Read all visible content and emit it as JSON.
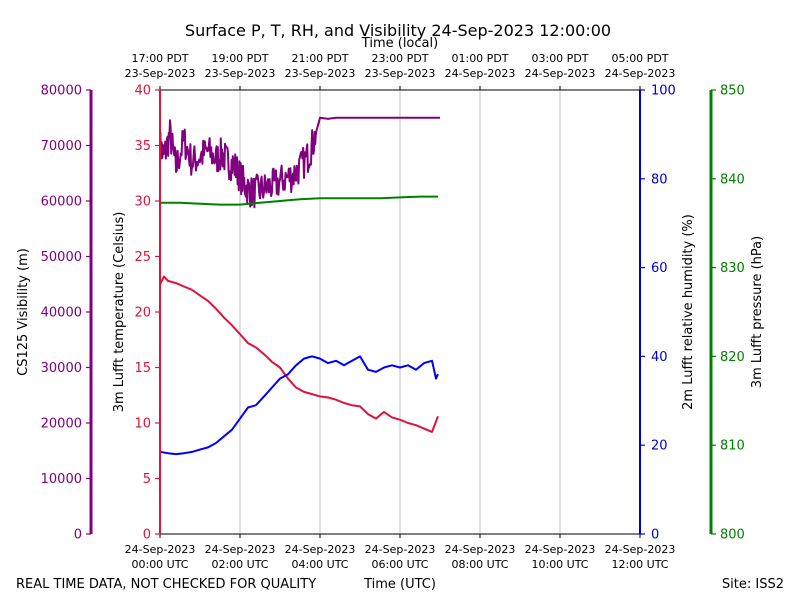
{
  "chart_data": {
    "type": "line",
    "title": "Surface P, T, RH, and Visibility 24-Sep-2023 12:00:00",
    "top_xlabel": "Time (local)",
    "xlabel": "Time (UTC)",
    "footer_left": "REAL TIME DATA, NOT CHECKED FOR QUALITY",
    "footer_right": "Site: ISS2",
    "x_range_hours": [
      0,
      12
    ],
    "x_ticks_utc": [
      {
        "h": 0,
        "line1": "24-Sep-2023",
        "line2": "00:00 UTC"
      },
      {
        "h": 2,
        "line1": "24-Sep-2023",
        "line2": "02:00 UTC"
      },
      {
        "h": 4,
        "line1": "24-Sep-2023",
        "line2": "04:00 UTC"
      },
      {
        "h": 6,
        "line1": "24-Sep-2023",
        "line2": "06:00 UTC"
      },
      {
        "h": 8,
        "line1": "24-Sep-2023",
        "line2": "08:00 UTC"
      },
      {
        "h": 10,
        "line1": "24-Sep-2023",
        "line2": "10:00 UTC"
      },
      {
        "h": 12,
        "line1": "24-Sep-2023",
        "line2": "12:00 UTC"
      }
    ],
    "x_ticks_local": [
      {
        "h": 0,
        "line1": "17:00 PDT",
        "line2": "23-Sep-2023"
      },
      {
        "h": 2,
        "line1": "19:00 PDT",
        "line2": "23-Sep-2023"
      },
      {
        "h": 4,
        "line1": "21:00 PDT",
        "line2": "23-Sep-2023"
      },
      {
        "h": 6,
        "line1": "23:00 PDT",
        "line2": "23-Sep-2023"
      },
      {
        "h": 8,
        "line1": "01:00 PDT",
        "line2": "24-Sep-2023"
      },
      {
        "h": 10,
        "line1": "03:00 PDT",
        "line2": "24-Sep-2023"
      },
      {
        "h": 12,
        "line1": "05:00 PDT",
        "line2": "24-Sep-2023"
      }
    ],
    "axes": {
      "visibility": {
        "label": "CS125 Visibility (m)",
        "color": "#800080",
        "range": [
          0,
          80000
        ],
        "ticks": [
          "0",
          "10000",
          "20000",
          "30000",
          "40000",
          "50000",
          "60000",
          "70000",
          "80000"
        ]
      },
      "temperature": {
        "label": "3m Lufft temperature (Celsius)",
        "color": "#dc143c",
        "range": [
          0,
          40
        ],
        "ticks": [
          "0",
          "5",
          "10",
          "15",
          "20",
          "25",
          "30",
          "35",
          "40"
        ]
      },
      "humidity": {
        "label": "2m Lufft relative humidity (%)",
        "color": "#0000cd",
        "range": [
          0,
          100
        ],
        "ticks": [
          "0",
          "20",
          "40",
          "60",
          "80",
          "100"
        ]
      },
      "pressure": {
        "label": "3m Lufft pressure (hPa)",
        "color": "#008000",
        "range": [
          800,
          850
        ],
        "ticks": [
          "800",
          "810",
          "820",
          "830",
          "840",
          "850"
        ]
      }
    },
    "series": [
      {
        "name": "visibility",
        "axis": "visibility",
        "color": "#800080",
        "noisy": true,
        "x": [
          0,
          0.1,
          0.25,
          0.4,
          0.6,
          0.8,
          1.0,
          1.2,
          1.4,
          1.55,
          1.7,
          1.85,
          2.0,
          2.15,
          2.3,
          2.5,
          2.7,
          2.9,
          3.1,
          3.3,
          3.5,
          3.7,
          3.85,
          4.0,
          4.2,
          4.4,
          4.6,
          5.0,
          5.5,
          6.0,
          6.5,
          7.0
        ],
        "y": [
          70000,
          68000,
          72000,
          66000,
          71000,
          67000,
          68000,
          69000,
          67500,
          68500,
          67000,
          66500,
          64500,
          62500,
          61500,
          62000,
          62500,
          63000,
          64000,
          64500,
          66000,
          68000,
          71000,
          75000,
          74800,
          75000,
          75000,
          75000,
          75000,
          75000,
          75000,
          75000
        ]
      },
      {
        "name": "temperature",
        "axis": "temperature",
        "color": "#dc143c",
        "x": [
          0,
          0.1,
          0.2,
          0.4,
          0.6,
          0.8,
          1.0,
          1.2,
          1.4,
          1.6,
          1.8,
          2.0,
          2.2,
          2.4,
          2.6,
          2.8,
          3.0,
          3.2,
          3.4,
          3.6,
          3.8,
          4.0,
          4.2,
          4.4,
          4.6,
          4.8,
          5.0,
          5.2,
          5.4,
          5.6,
          5.8,
          6.0,
          6.2,
          6.4,
          6.6,
          6.8,
          6.95
        ],
        "y": [
          22.5,
          23.2,
          22.8,
          22.6,
          22.3,
          22.0,
          21.5,
          21.0,
          20.3,
          19.5,
          18.8,
          18.0,
          17.2,
          16.8,
          16.2,
          15.5,
          15.0,
          14.0,
          13.2,
          12.8,
          12.6,
          12.4,
          12.3,
          12.1,
          11.8,
          11.6,
          11.5,
          10.8,
          10.4,
          11.0,
          10.5,
          10.3,
          10.0,
          9.8,
          9.5,
          9.2,
          10.6
        ]
      },
      {
        "name": "humidity",
        "axis": "humidity",
        "color": "#0000ff",
        "x": [
          0,
          0.2,
          0.4,
          0.6,
          0.8,
          1.0,
          1.2,
          1.4,
          1.6,
          1.8,
          2.0,
          2.2,
          2.4,
          2.6,
          2.8,
          3.0,
          3.2,
          3.4,
          3.6,
          3.8,
          4.0,
          4.2,
          4.4,
          4.6,
          4.8,
          5.0,
          5.2,
          5.4,
          5.6,
          5.8,
          6.0,
          6.2,
          6.4,
          6.6,
          6.8,
          6.9,
          6.95
        ],
        "y": [
          18.5,
          18.2,
          18.0,
          18.2,
          18.5,
          19.0,
          19.5,
          20.5,
          22.0,
          23.5,
          26.0,
          28.5,
          29.0,
          31.0,
          33.0,
          35.0,
          36.0,
          38.0,
          39.5,
          40.0,
          39.5,
          38.5,
          39.0,
          38.0,
          39.0,
          40.0,
          37.0,
          36.5,
          37.5,
          38.0,
          37.5,
          38.0,
          37.0,
          38.5,
          39.0,
          35.0,
          36.0
        ]
      },
      {
        "name": "pressure",
        "axis": "pressure",
        "color": "#008000",
        "x": [
          0,
          0.5,
          1.0,
          1.5,
          2.0,
          2.5,
          3.0,
          3.5,
          4.0,
          4.5,
          5.0,
          5.5,
          6.0,
          6.5,
          6.95
        ],
        "y": [
          837.3,
          837.3,
          837.2,
          837.1,
          837.1,
          837.3,
          837.5,
          837.7,
          837.8,
          837.8,
          837.8,
          837.8,
          837.9,
          838.0,
          838.0
        ]
      }
    ]
  }
}
